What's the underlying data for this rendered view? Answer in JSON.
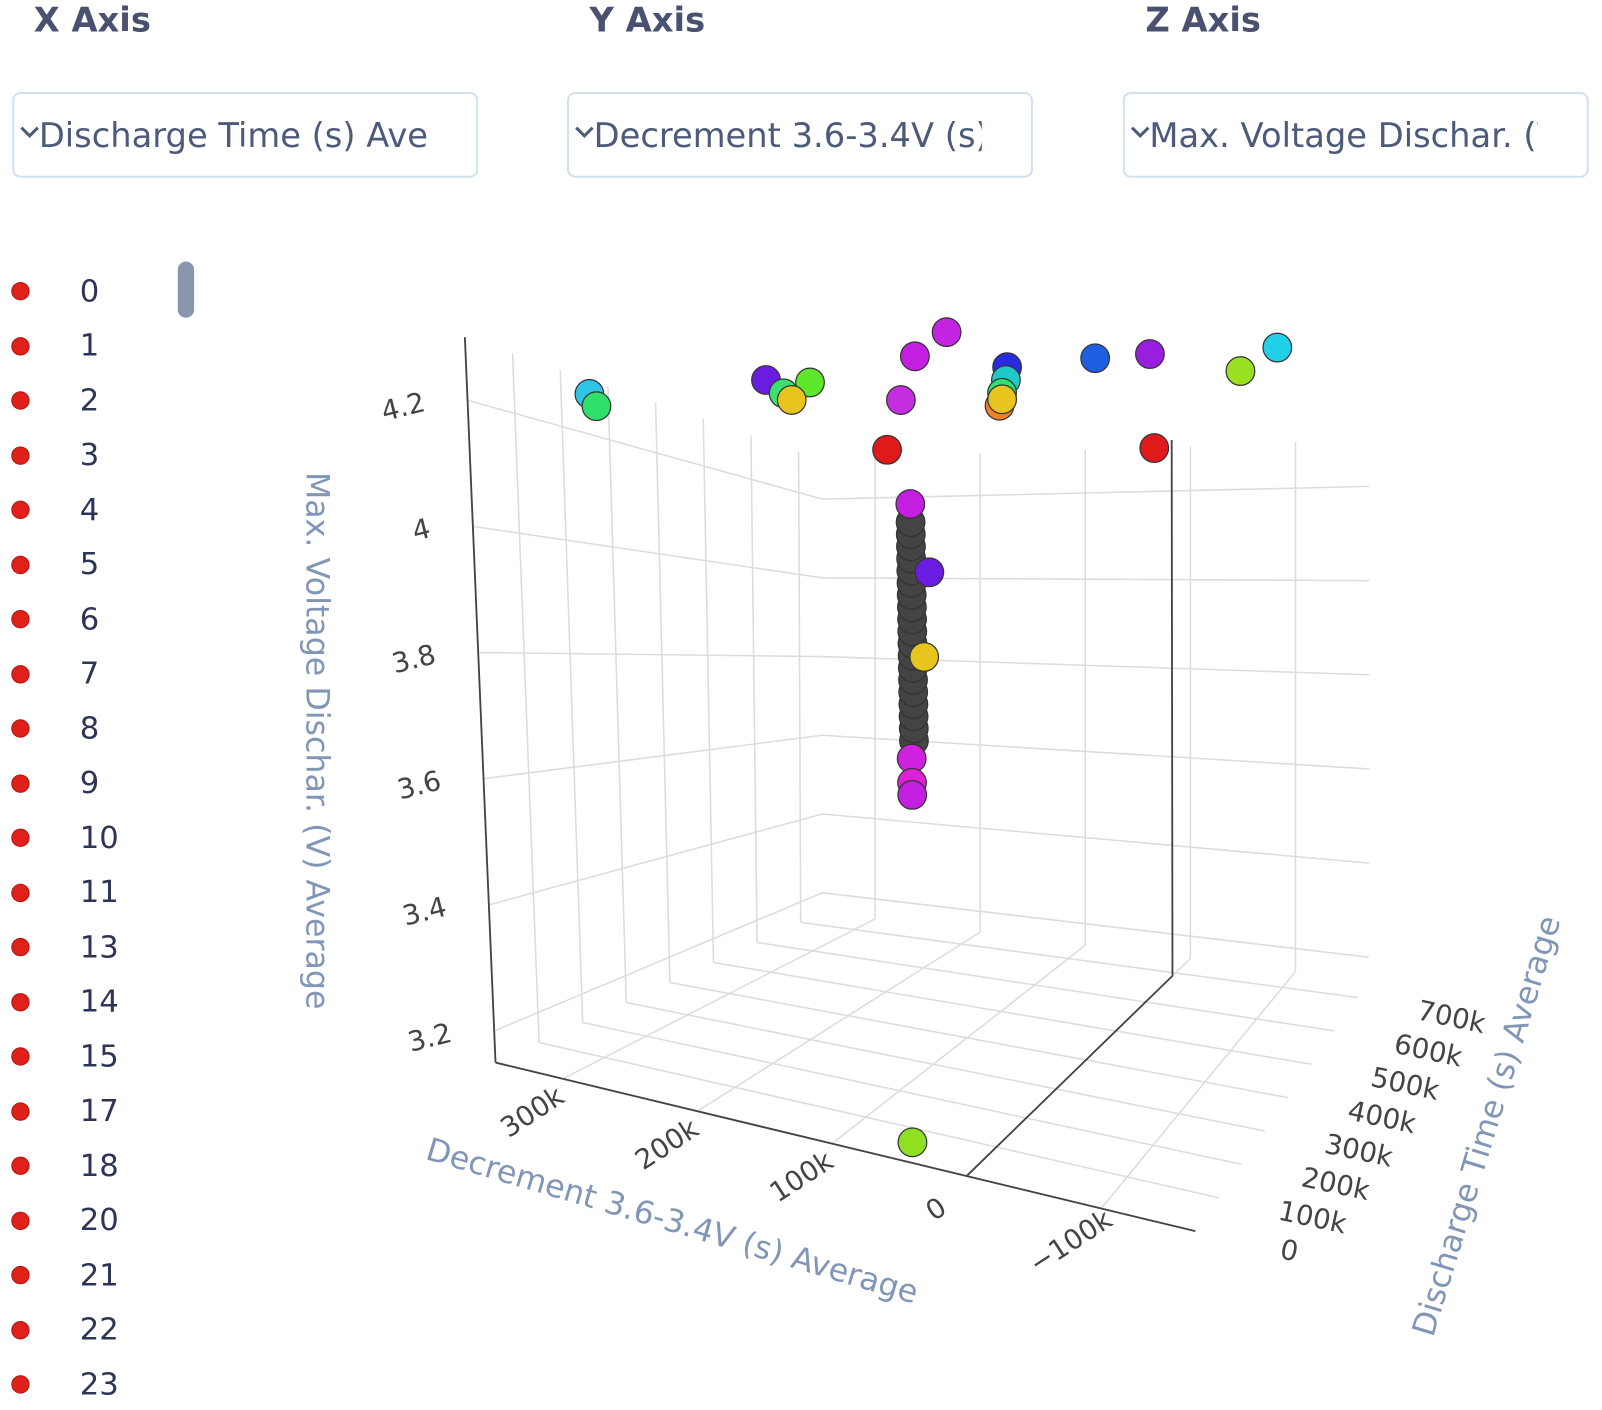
{
  "controls": {
    "x_label": "X Axis",
    "x_value": "Discharge Time (s) Average",
    "y_label": "Y Axis",
    "y_value": "Decrement 3.6-3.4V (s) Average",
    "z_label": "Z Axis",
    "z_value": "Max. Voltage Dischar. (V) Average"
  },
  "legend": {
    "items": [
      "0",
      "1",
      "2",
      "3",
      "4",
      "5",
      "6",
      "7",
      "8",
      "9",
      "10",
      "11",
      "13",
      "14",
      "15",
      "17",
      "18",
      "20",
      "21",
      "22",
      "23"
    ],
    "color": "#e0201a"
  },
  "chart_data": {
    "type": "scatter3d",
    "x_axis": {
      "title": "Discharge Time (s) Average",
      "range": [
        0,
        750000
      ],
      "ticks": [
        0,
        100000,
        200000,
        300000,
        400000,
        500000,
        600000,
        700000
      ],
      "tick_labels": [
        "0",
        "100k",
        "200k",
        "300k",
        "400k",
        "500k",
        "600k",
        "700k"
      ]
    },
    "y_axis": {
      "title": "Decrement 3.6-3.4V (s) Average",
      "range": [
        -170000,
        350000
      ],
      "ticks": [
        300000,
        200000,
        100000,
        0,
        -100000
      ],
      "tick_labels": [
        "300k",
        "200k",
        "100k",
        "0",
        "−100k"
      ]
    },
    "z_axis": {
      "title": "Max. Voltage Dischar. (V) Average",
      "range": [
        3.15,
        4.3
      ],
      "ticks": [
        3.2,
        3.4,
        3.6,
        3.8,
        4,
        4.2
      ],
      "tick_labels": [
        "3.2",
        "3.4",
        "3.6",
        "3.8",
        "4",
        "4.2"
      ]
    },
    "grid": true,
    "points": [
      {
        "x": 150000,
        "y": 311000,
        "z": 4.25,
        "color": "#2ec4e6"
      },
      {
        "x": 150000,
        "y": 306000,
        "z": 4.23,
        "color": "#2ee06a"
      },
      {
        "x": 150000,
        "y": 178000,
        "z": 4.29,
        "color": "#6a1de0"
      },
      {
        "x": 150000,
        "y": 165000,
        "z": 4.27,
        "color": "#3de070"
      },
      {
        "x": 150000,
        "y": 145000,
        "z": 4.29,
        "color": "#5ee62a"
      },
      {
        "x": 150000,
        "y": 159000,
        "z": 4.26,
        "color": "#e8c51e"
      },
      {
        "x": 150000,
        "y": 66000,
        "z": 4.34,
        "color": "#c41ee0"
      },
      {
        "x": 150000,
        "y": 42000,
        "z": 4.38,
        "color": "#c424e0"
      },
      {
        "x": 150000,
        "y": 77000,
        "z": 4.27,
        "color": "#c42ee0"
      },
      {
        "x": 150000,
        "y": -3000,
        "z": 4.33,
        "color": "#2a2ae0"
      },
      {
        "x": 150000,
        "y": -2000,
        "z": 4.31,
        "color": "#20c8c8"
      },
      {
        "x": 150000,
        "y": 1000,
        "z": 4.29,
        "color": "#30e070"
      },
      {
        "x": 150000,
        "y": 3000,
        "z": 4.27,
        "color": "#f08020"
      },
      {
        "x": 150000,
        "y": 1000,
        "z": 4.28,
        "color": "#e8c51e"
      },
      {
        "x": 150000,
        "y": -69000,
        "z": 4.35,
        "color": "#1e5ee0"
      },
      {
        "x": 150000,
        "y": -110000,
        "z": 4.36,
        "color": "#9a1ee0"
      },
      {
        "x": 375000,
        "y": -136000,
        "z": 4.37,
        "color": "#98e020"
      },
      {
        "x": 375000,
        "y": -166000,
        "z": 4.41,
        "color": "#20d0e8"
      },
      {
        "x": 150000,
        "y": 88000,
        "z": 4.19,
        "color": "#e01a1a"
      },
      {
        "x": 150000,
        "y": -113000,
        "z": 4.22,
        "color": "#e01a1a"
      },
      {
        "x": 0,
        "y": 40000,
        "z": 3.18,
        "color": "#8ee020"
      },
      {
        "x": 225000,
        "y": 91000,
        "z": 3.72,
        "color": "#444444"
      },
      {
        "x": 225000,
        "y": 91000,
        "z": 3.74,
        "color": "#444444"
      },
      {
        "x": 225000,
        "y": 91000,
        "z": 3.76,
        "color": "#444444"
      },
      {
        "x": 225000,
        "y": 91000,
        "z": 3.78,
        "color": "#444444"
      },
      {
        "x": 225000,
        "y": 91000,
        "z": 3.8,
        "color": "#444444"
      },
      {
        "x": 225000,
        "y": 91000,
        "z": 3.82,
        "color": "#444444"
      },
      {
        "x": 225000,
        "y": 91000,
        "z": 3.84,
        "color": "#444444"
      },
      {
        "x": 225000,
        "y": 91000,
        "z": 3.86,
        "color": "#444444"
      },
      {
        "x": 225000,
        "y": 91000,
        "z": 3.88,
        "color": "#444444"
      },
      {
        "x": 225000,
        "y": 91000,
        "z": 3.9,
        "color": "#444444"
      },
      {
        "x": 225000,
        "y": 91000,
        "z": 3.92,
        "color": "#444444"
      },
      {
        "x": 225000,
        "y": 91000,
        "z": 3.94,
        "color": "#444444"
      },
      {
        "x": 225000,
        "y": 91000,
        "z": 3.96,
        "color": "#444444"
      },
      {
        "x": 225000,
        "y": 91000,
        "z": 3.98,
        "color": "#444444"
      },
      {
        "x": 225000,
        "y": 91000,
        "z": 4.0,
        "color": "#444444"
      },
      {
        "x": 225000,
        "y": 91000,
        "z": 4.02,
        "color": "#444444"
      },
      {
        "x": 225000,
        "y": 91000,
        "z": 4.04,
        "color": "#444444"
      },
      {
        "x": 225000,
        "y": 91000,
        "z": 4.06,
        "color": "#444444"
      },
      {
        "x": 225000,
        "y": 91000,
        "z": 4.08,
        "color": "#444444"
      },
      {
        "x": 225000,
        "y": 77000,
        "z": 4.0,
        "color": "#6a1de0"
      },
      {
        "x": 225000,
        "y": 82000,
        "z": 3.86,
        "color": "#e8c51e"
      },
      {
        "x": 225000,
        "y": 91000,
        "z": 4.11,
        "color": "#c41ee0"
      },
      {
        "x": 225000,
        "y": 93000,
        "z": 3.69,
        "color": "#d020e0"
      },
      {
        "x": 225000,
        "y": 93000,
        "z": 3.65,
        "color": "#e020d8"
      },
      {
        "x": 225000,
        "y": 93000,
        "z": 3.63,
        "color": "#c41ee0"
      }
    ]
  }
}
